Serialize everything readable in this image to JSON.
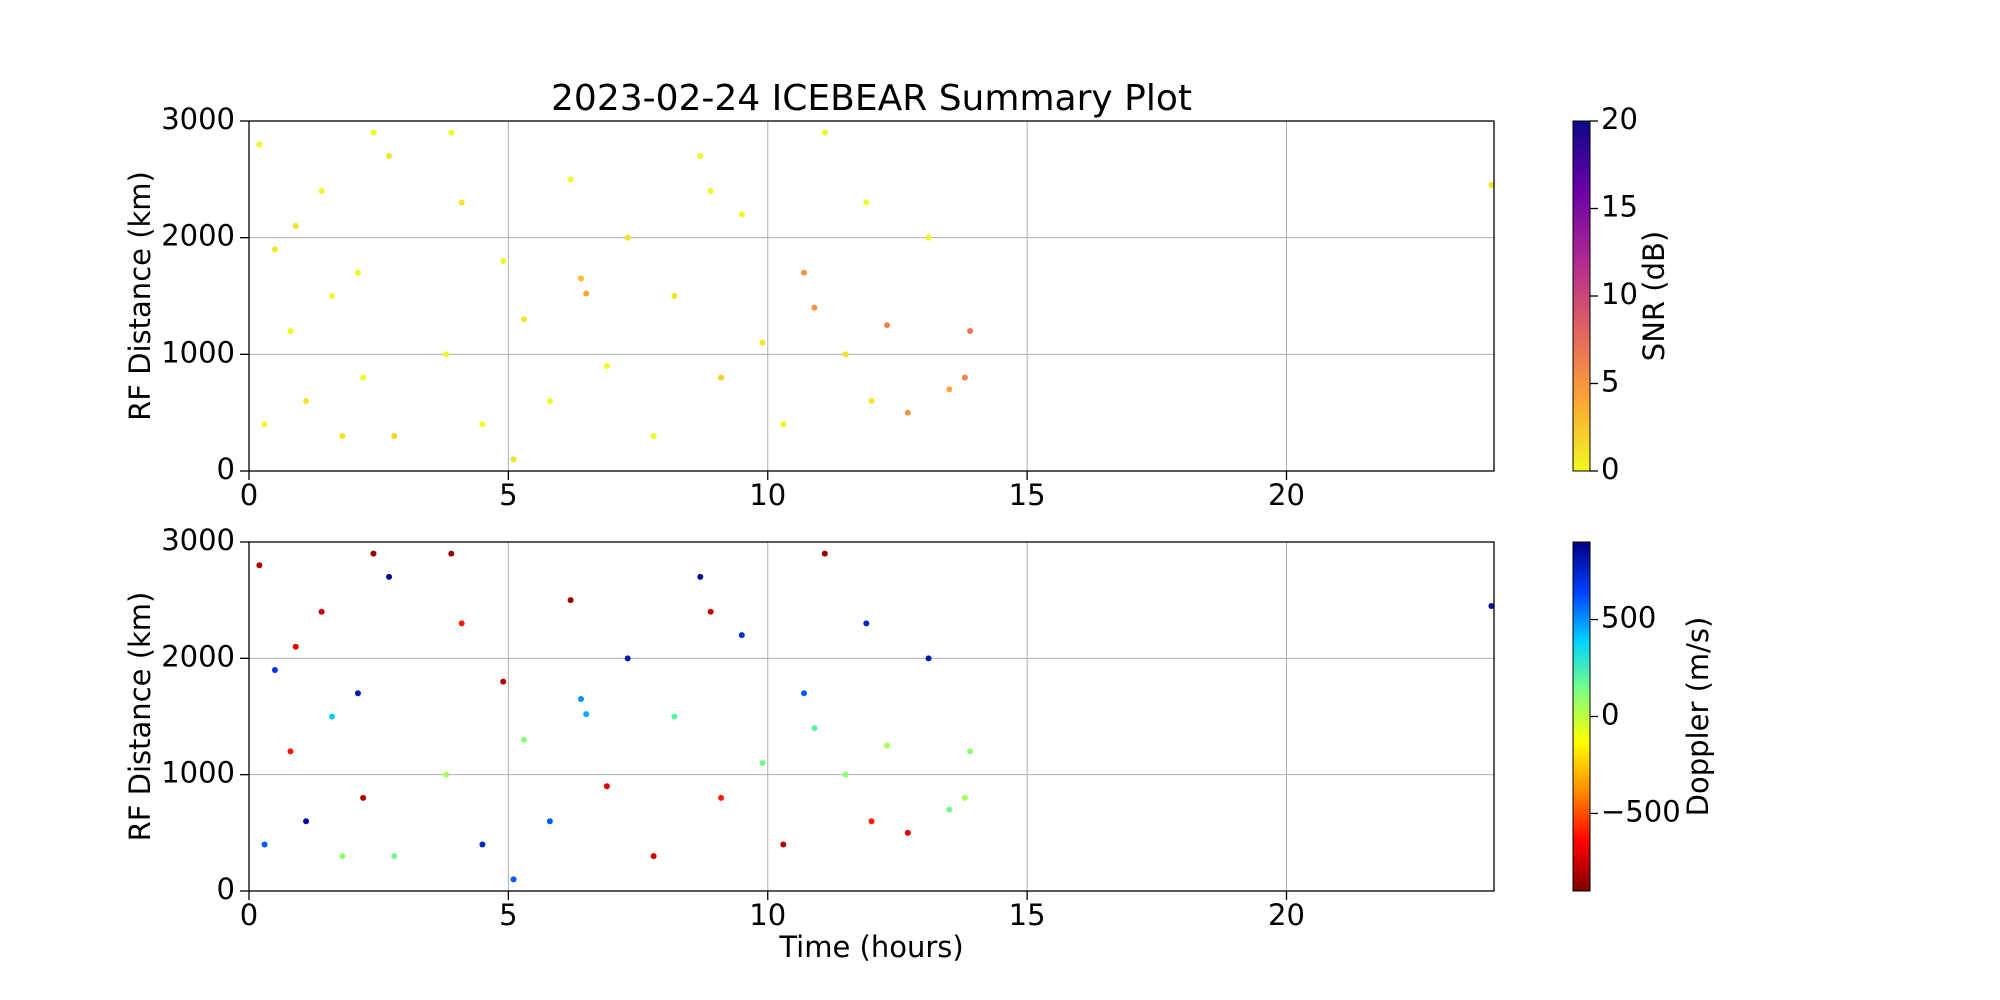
{
  "chart_data": [
    {
      "type": "scatter",
      "title": "2023-02-24 ICEBEAR Summary Plot",
      "ylabel": "RF Distance (km)",
      "xlim": [
        0,
        24
      ],
      "xticks": [
        0,
        5,
        10,
        15,
        20
      ],
      "ylim": [
        0,
        3000
      ],
      "yticks": [
        0,
        1000,
        2000,
        3000
      ],
      "grid": true,
      "x": [
        0.2,
        0.5,
        0.8,
        1.1,
        1.4,
        1.8,
        2.1,
        2.4,
        2.8,
        0.3,
        0.9,
        1.6,
        2.2,
        2.7,
        3.8,
        4.1,
        4.5,
        4.9,
        5.3,
        5.8,
        6.2,
        6.4,
        6.5,
        6.9,
        7.3,
        7.8,
        8.2,
        8.7,
        9.1,
        9.5,
        9.9,
        10.3,
        10.7,
        11.1,
        11.5,
        11.9,
        12.3,
        12.7,
        13.1,
        13.5,
        13.9,
        13.8,
        3.9,
        5.1,
        8.9,
        10.9,
        12.0,
        23.95
      ],
      "y": [
        2800,
        1900,
        1200,
        600,
        2400,
        300,
        1700,
        2900,
        300,
        400,
        2100,
        1500,
        800,
        2700,
        1000,
        2300,
        400,
        1800,
        1300,
        600,
        2500,
        1650,
        1520,
        900,
        2000,
        300,
        1500,
        2700,
        800,
        2200,
        1100,
        400,
        1700,
        2900,
        1000,
        2300,
        1250,
        500,
        2000,
        700,
        1200,
        800,
        2900,
        100,
        2400,
        1400,
        600,
        2450
      ],
      "c": [
        0,
        1,
        0,
        1,
        0,
        1,
        0,
        0,
        2,
        0,
        1,
        0,
        0,
        1,
        0,
        1,
        0,
        0,
        1,
        0,
        0,
        3,
        4,
        0,
        1,
        0,
        1,
        0,
        2,
        0,
        1,
        0,
        5,
        0,
        1,
        0,
        6,
        5,
        0,
        4,
        7,
        6,
        0,
        1,
        0,
        5,
        1,
        1
      ],
      "colorbar": {
        "label": "SNR (dB)",
        "lim": [
          0,
          20
        ],
        "ticks": [
          0,
          5,
          10,
          15,
          20
        ],
        "colormap": [
          "#f0f921",
          "#fca636",
          "#e16462",
          "#b12a90",
          "#6a00a8",
          "#0d0887"
        ]
      }
    },
    {
      "type": "scatter",
      "ylabel": "RF Distance (km)",
      "xlabel": "Time (hours)",
      "xlim": [
        0,
        24
      ],
      "xticks": [
        0,
        5,
        10,
        15,
        20
      ],
      "ylim": [
        0,
        3000
      ],
      "yticks": [
        0,
        1000,
        2000,
        3000
      ],
      "grid": true,
      "x": [
        0.2,
        0.5,
        0.8,
        1.1,
        1.4,
        1.8,
        2.1,
        2.4,
        2.8,
        0.3,
        0.9,
        1.6,
        2.2,
        2.7,
        3.8,
        4.1,
        4.5,
        4.9,
        5.3,
        5.8,
        6.2,
        6.4,
        6.5,
        6.9,
        7.3,
        7.8,
        8.2,
        8.7,
        9.1,
        9.5,
        9.9,
        10.3,
        10.7,
        11.1,
        11.5,
        11.9,
        12.3,
        12.7,
        13.1,
        13.5,
        13.9,
        13.8,
        3.9,
        5.1,
        8.9,
        10.9,
        12.0,
        23.95
      ],
      "y": [
        2800,
        1900,
        1200,
        600,
        2400,
        300,
        1700,
        2900,
        300,
        400,
        2100,
        1500,
        800,
        2700,
        1000,
        2300,
        400,
        1800,
        1300,
        600,
        2500,
        1650,
        1520,
        900,
        2000,
        300,
        1500,
        2700,
        800,
        2200,
        1100,
        400,
        1700,
        2900,
        1000,
        2300,
        1250,
        500,
        2000,
        700,
        1200,
        800,
        2900,
        100,
        2400,
        1400,
        600,
        2450
      ],
      "c": [
        -800,
        700,
        -600,
        850,
        -750,
        100,
        800,
        -850,
        150,
        600,
        -700,
        400,
        -800,
        850,
        50,
        -600,
        750,
        -800,
        100,
        600,
        -850,
        500,
        450,
        -700,
        800,
        -750,
        200,
        850,
        -600,
        700,
        150,
        -800,
        600,
        -850,
        100,
        750,
        50,
        -700,
        800,
        150,
        100,
        50,
        -850,
        600,
        -750,
        200,
        -600,
        850
      ],
      "colorbar": {
        "label": "Doppler (m/s)",
        "lim": [
          -900,
          900
        ],
        "ticks": [
          {
            "value": -500,
            "label": "−500"
          },
          0,
          500
        ],
        "colormap": [
          "#800000",
          "#ff0000",
          "#ff8c00",
          "#ffff00",
          "#80ff80",
          "#00d4ff",
          "#0040ff",
          "#000080"
        ]
      }
    }
  ]
}
